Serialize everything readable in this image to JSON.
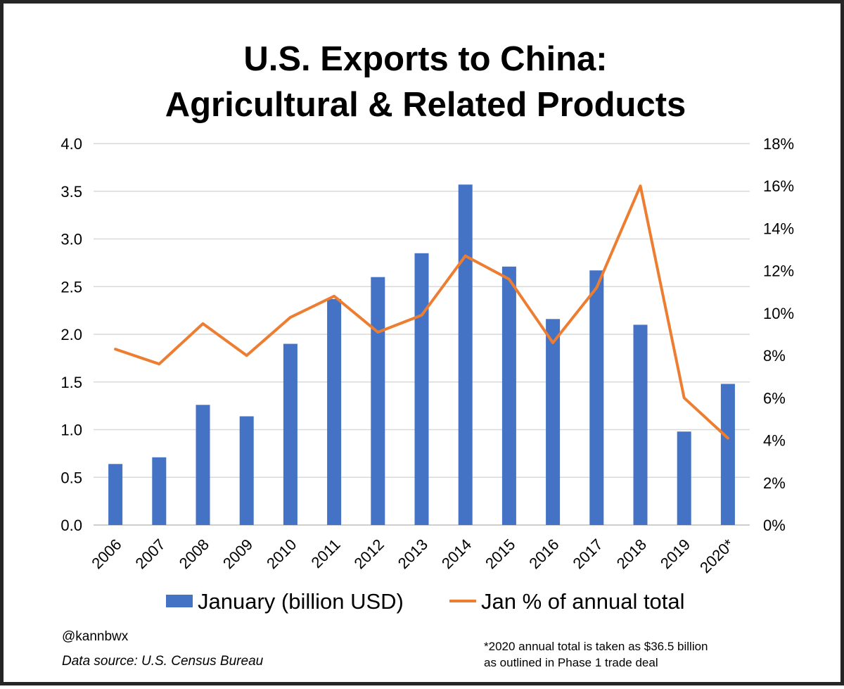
{
  "chart_data": {
    "type": "bar",
    "title_lines": [
      "U.S. Exports to China:",
      "Agricultural & Related Products"
    ],
    "categories": [
      "2006",
      "2007",
      "2008",
      "2009",
      "2010",
      "2011",
      "2012",
      "2013",
      "2014",
      "2015",
      "2016",
      "2017",
      "2018",
      "2019",
      "2020*"
    ],
    "series": [
      {
        "name": "January (billion USD)",
        "type": "bar",
        "axis": "left",
        "color": "#4472C4",
        "values": [
          0.64,
          0.71,
          1.26,
          1.14,
          1.9,
          2.37,
          2.6,
          2.85,
          3.57,
          2.71,
          2.16,
          2.67,
          2.1,
          0.98,
          1.48
        ]
      },
      {
        "name": "Jan % of annual total",
        "type": "line",
        "axis": "right",
        "color": "#ED7D31",
        "values": [
          8.3,
          7.6,
          9.5,
          8.0,
          9.8,
          10.8,
          9.1,
          9.9,
          12.7,
          11.6,
          8.6,
          11.2,
          16.0,
          6.0,
          4.1
        ]
      }
    ],
    "y_left": {
      "ylim": [
        0,
        4
      ],
      "ticks": [
        "0.0",
        "0.5",
        "1.0",
        "1.5",
        "2.0",
        "2.5",
        "3.0",
        "3.5",
        "4.0"
      ]
    },
    "y_right": {
      "ylim": [
        0,
        18
      ],
      "ticks": [
        "0%",
        "2%",
        "4%",
        "6%",
        "8%",
        "10%",
        "12%",
        "14%",
        "16%",
        "18%"
      ]
    },
    "grid": true,
    "legend_position": "bottom",
    "credit": "@kannbwx",
    "source": "Data source: U.S. Census Bureau",
    "footnote_lines": [
      "*2020 annual total is taken as $36.5 billion",
      "as outlined in Phase 1 trade deal"
    ]
  }
}
